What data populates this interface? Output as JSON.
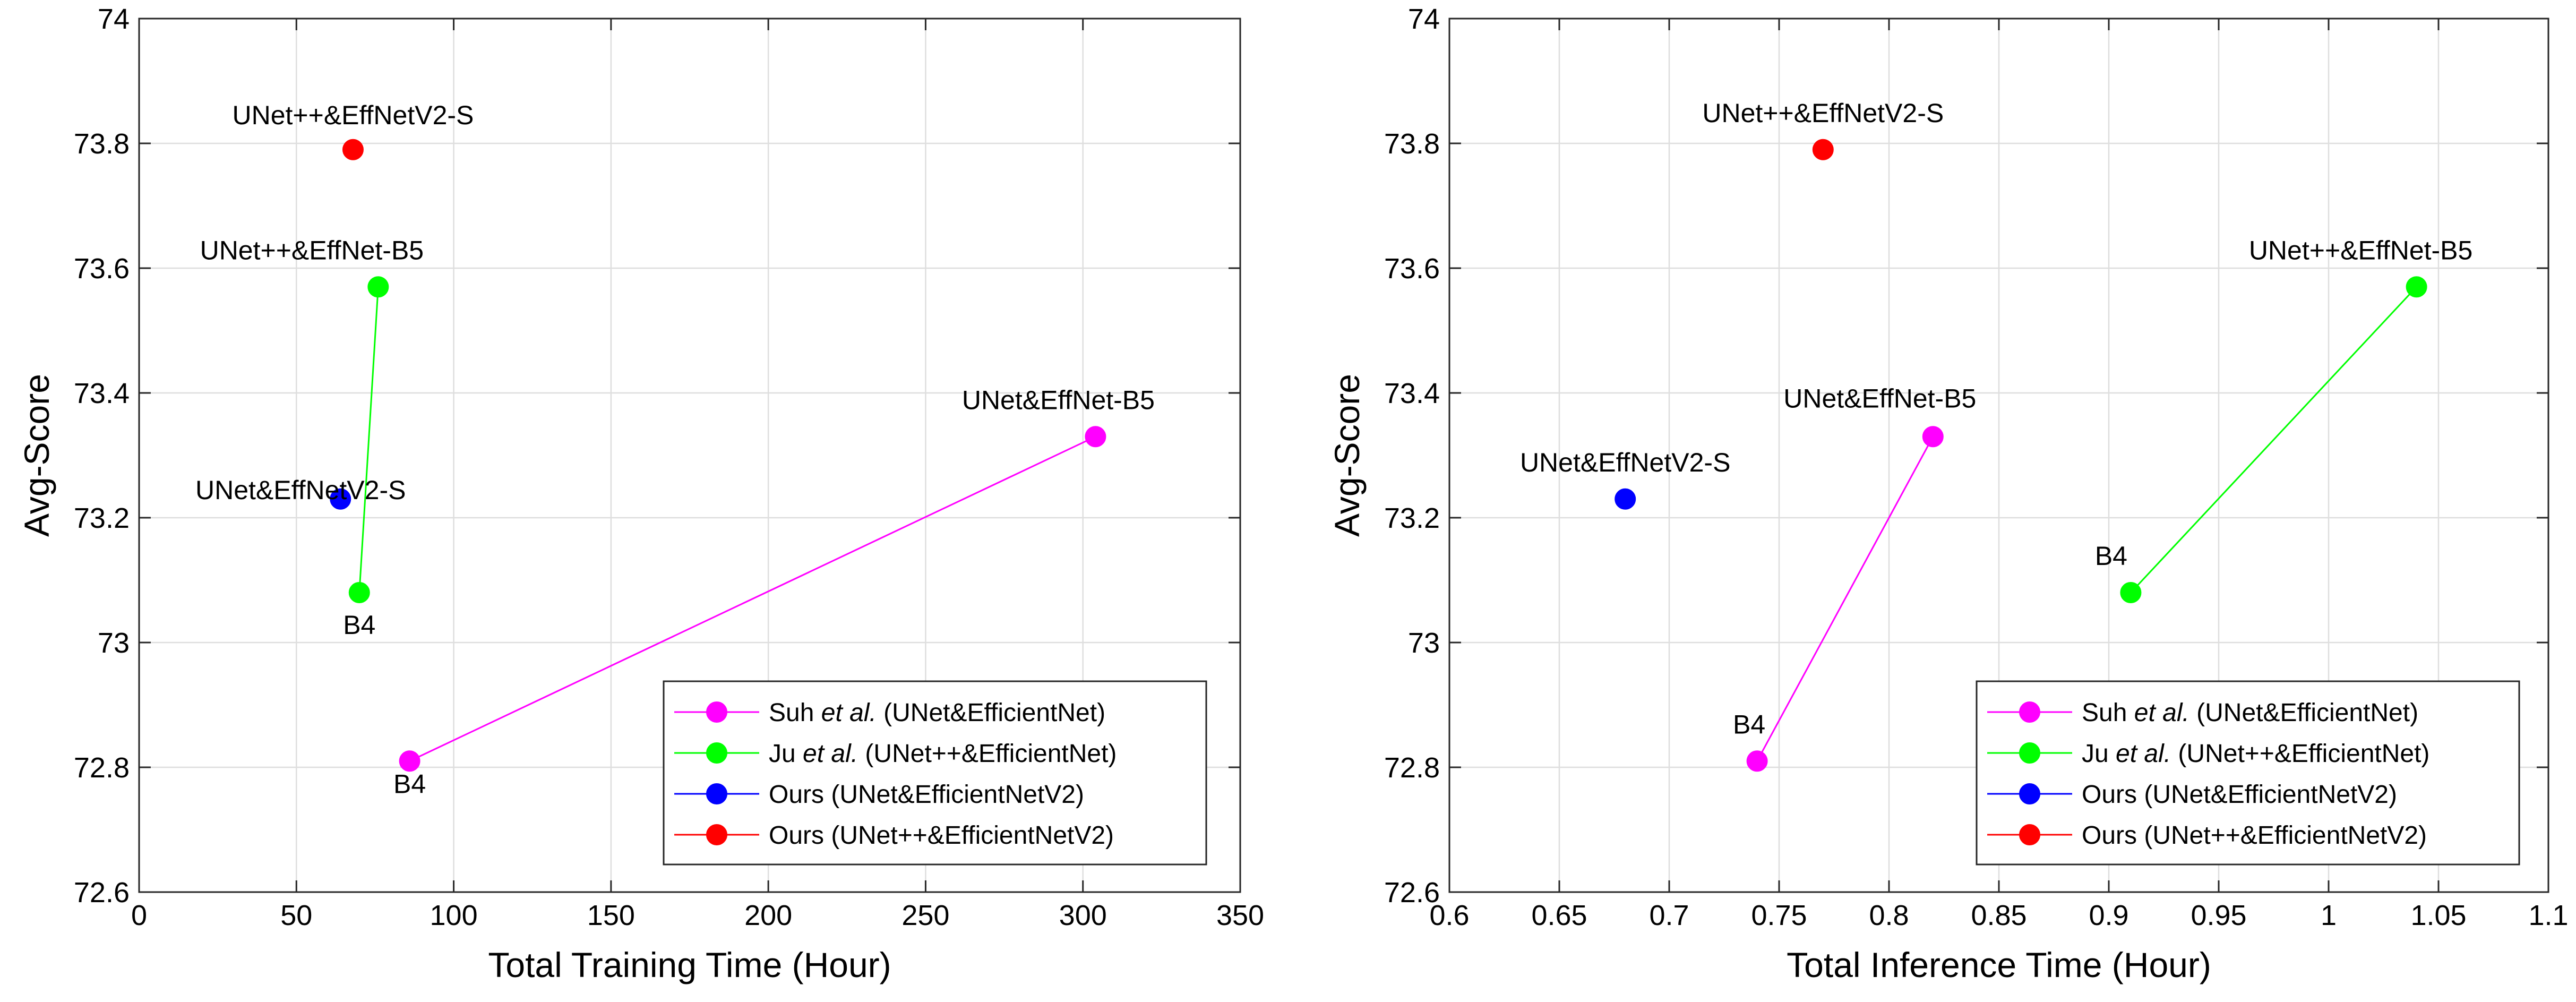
{
  "chart_data": [
    {
      "type": "scatter",
      "xlabel": "Total Training Time (Hour)",
      "ylabel": "Avg-Score",
      "xlim": [
        0,
        350
      ],
      "ylim": [
        72.6,
        74
      ],
      "xticks": [
        "0",
        "50",
        "100",
        "150",
        "200",
        "250",
        "300",
        "350"
      ],
      "yticks": [
        "72.6",
        "72.8",
        "73",
        "73.2",
        "73.4",
        "73.6",
        "73.8",
        "74"
      ],
      "grid": true,
      "legend_position": "bottom-right",
      "series": [
        {
          "name": "Suh et al. (UNet&EfficientNet)",
          "color": "#ff00ff",
          "connected": true,
          "points": [
            {
              "x": 86,
              "y": 72.81,
              "label": "B4"
            },
            {
              "x": 304,
              "y": 73.33,
              "label": "UNet&EffNet-B5"
            }
          ]
        },
        {
          "name": "Ju et al. (UNet++&EfficientNet)",
          "color": "#00ff00",
          "connected": true,
          "points": [
            {
              "x": 70,
              "y": 73.08,
              "label": "B4"
            },
            {
              "x": 76,
              "y": 73.57,
              "label": "UNet++&EffNet-B5"
            }
          ]
        },
        {
          "name": "Ours (UNet&EfficientNetV2)",
          "color": "#0000ff",
          "connected": false,
          "points": [
            {
              "x": 64,
              "y": 73.23,
              "label": "UNet&EffNetV2-S"
            }
          ]
        },
        {
          "name": "Ours (UNet++&EfficientNetV2)",
          "color": "#ff0000",
          "connected": false,
          "points": [
            {
              "x": 68,
              "y": 73.79,
              "label": "UNet++&EffNetV2-S"
            }
          ]
        }
      ]
    },
    {
      "type": "scatter",
      "xlabel": "Total Inference Time (Hour)",
      "ylabel": "Avg-Score",
      "xlim": [
        0.6,
        1.1
      ],
      "ylim": [
        72.6,
        74
      ],
      "xticks": [
        "0.6",
        "0.65",
        "0.7",
        "0.75",
        "0.8",
        "0.85",
        "0.9",
        "0.95",
        "1",
        "1.05",
        "1.1"
      ],
      "yticks": [
        "72.6",
        "72.8",
        "73",
        "73.2",
        "73.4",
        "73.6",
        "73.8",
        "74"
      ],
      "grid": true,
      "legend_position": "bottom-right",
      "series": [
        {
          "name": "Suh et al. (UNet&EfficientNet)",
          "color": "#ff00ff",
          "connected": true,
          "points": [
            {
              "x": 0.74,
              "y": 72.81,
              "label": "B4"
            },
            {
              "x": 0.82,
              "y": 73.33,
              "label": "UNet&EffNet-B5"
            }
          ]
        },
        {
          "name": "Ju et al. (UNet++&EfficientNet)",
          "color": "#00ff00",
          "connected": true,
          "points": [
            {
              "x": 0.91,
              "y": 73.08,
              "label": "B4"
            },
            {
              "x": 1.04,
              "y": 73.57,
              "label": "UNet++&EffNet-B5"
            }
          ]
        },
        {
          "name": "Ours (UNet&EfficientNetV2)",
          "color": "#0000ff",
          "connected": false,
          "points": [
            {
              "x": 0.68,
              "y": 73.23,
              "label": "UNet&EffNetV2-S"
            }
          ]
        },
        {
          "name": "Ours (UNet++&EfficientNetV2)",
          "color": "#ff0000",
          "connected": false,
          "points": [
            {
              "x": 0.77,
              "y": 73.79,
              "label": "UNet++&EffNetV2-S"
            }
          ]
        }
      ]
    }
  ]
}
